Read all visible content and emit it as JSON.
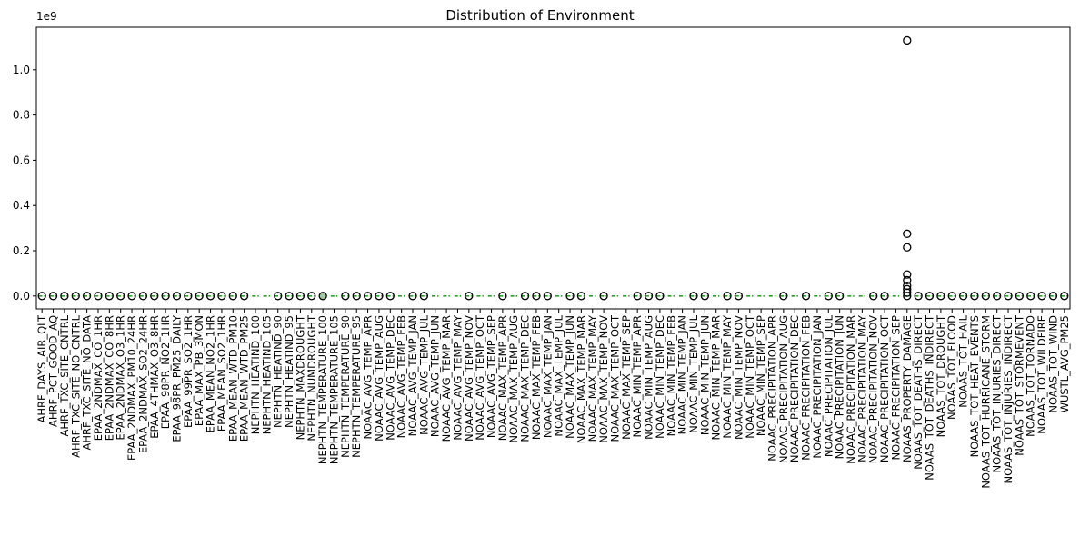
{
  "chart_data": {
    "type": "box",
    "title": "Distribution of Environment",
    "xlabel": "",
    "ylabel": "",
    "y_offset_label": "1e9",
    "ylim": [
      -0.057,
      1.188
    ],
    "yticks": [
      0.0,
      0.2,
      0.4,
      0.6,
      0.8,
      1.0
    ],
    "ytick_labels": [
      "0.0",
      "0.2",
      "0.4",
      "0.6",
      "0.8",
      "1.0"
    ],
    "grid": false,
    "legend": false,
    "colors": {
      "box_edge": "#1f77b4",
      "median": "#2ca02c",
      "flier_edge": "#000000",
      "flier_fill_light": "#9ecaa0"
    },
    "categories": [
      "AHRF_DAYS_AIR_QLT",
      "AHRF_PCT_GOOD_AQ",
      "AHRF_TXC_SITE_CNTRL",
      "AHRF_TXC_SITE_NO_CNTRL",
      "AHRF_TXC_SITE_NO_DATA",
      "EPAA_2NDMAX_CO_1HR",
      "EPAA_2NDMAX_CO_8HR",
      "EPAA_2NDMAX_O3_1HR",
      "EPAA_2NDMAX_PM10_24HR",
      "EPAA_2NDMAX_SO2_24HR",
      "EPAA_4THMAX_O3_8HR",
      "EPAA_98PR_NO2_1HR",
      "EPAA_98PR_PM25_DAILY",
      "EPAA_99PR_SO2_1HR",
      "EPAA_MAX_PB_3MON",
      "EPAA_MEAN_NO2_1HR",
      "EPAA_MEAN_SO2_1HR",
      "EPAA_MEAN_WTD_PM10",
      "EPAA_MEAN_WTD_PM25",
      "NEPHTN_HEATIND_100",
      "NEPHTN_HEATIND_105",
      "NEPHTN_HEATIND_90",
      "NEPHTN_HEATIND_95",
      "NEPHTN_MAXDROUGHT",
      "NEPHTN_NUMDROUGHT",
      "NEPHTN_TEMPERATURE_100",
      "NEPHTN_TEMPERATURE_105",
      "NEPHTN_TEMPERATURE_90",
      "NEPHTN_TEMPERATURE_95",
      "NOAAC_AVG_TEMP_APR",
      "NOAAC_AVG_TEMP_AUG",
      "NOAAC_AVG_TEMP_DEC",
      "NOAAC_AVG_TEMP_FEB",
      "NOAAC_AVG_TEMP_JAN",
      "NOAAC_AVG_TEMP_JUL",
      "NOAAC_AVG_TEMP_JUN",
      "NOAAC_AVG_TEMP_MAR",
      "NOAAC_AVG_TEMP_MAY",
      "NOAAC_AVG_TEMP_NOV",
      "NOAAC_AVG_TEMP_OCT",
      "NOAAC_AVG_TEMP_SEP",
      "NOAAC_MAX_TEMP_APR",
      "NOAAC_MAX_TEMP_AUG",
      "NOAAC_MAX_TEMP_DEC",
      "NOAAC_MAX_TEMP_FEB",
      "NOAAC_MAX_TEMP_JAN",
      "NOAAC_MAX_TEMP_JUL",
      "NOAAC_MAX_TEMP_JUN",
      "NOAAC_MAX_TEMP_MAR",
      "NOAAC_MAX_TEMP_MAY",
      "NOAAC_MAX_TEMP_NOV",
      "NOAAC_MAX_TEMP_OCT",
      "NOAAC_MAX_TEMP_SEP",
      "NOAAC_MIN_TEMP_APR",
      "NOAAC_MIN_TEMP_AUG",
      "NOAAC_MIN_TEMP_DEC",
      "NOAAC_MIN_TEMP_FEB",
      "NOAAC_MIN_TEMP_JAN",
      "NOAAC_MIN_TEMP_JUL",
      "NOAAC_MIN_TEMP_JUN",
      "NOAAC_MIN_TEMP_MAR",
      "NOAAC_MIN_TEMP_MAY",
      "NOAAC_MIN_TEMP_NOV",
      "NOAAC_MIN_TEMP_OCT",
      "NOAAC_MIN_TEMP_SEP",
      "NOAAC_PRECIPITATION_APR",
      "NOAAC_PRECIPITATION_AUG",
      "NOAAC_PRECIPITATION_DEC",
      "NOAAC_PRECIPITATION_FEB",
      "NOAAC_PRECIPITATION_JAN",
      "NOAAC_PRECIPITATION_JUL",
      "NOAAC_PRECIPITATION_JUN",
      "NOAAC_PRECIPITATION_MAR",
      "NOAAC_PRECIPITATION_MAY",
      "NOAAC_PRECIPITATION_NOV",
      "NOAAC_PRECIPITATION_OCT",
      "NOAAC_PRECIPITATION_SEP",
      "NOAAS_PROPERTY_DAMAGE",
      "NOAAS_TOT_DEATHS_DIRECT",
      "NOAAS_TOT_DEATHS_INDIRECT",
      "NOAAS_TOT_DROUGHT",
      "NOAAS_TOT_FLOOD",
      "NOAAS_TOT_HAIL",
      "NOAAS_TOT_HEAT_EVENTS",
      "NOAAS_TOT_HURRICANE_STORM",
      "NOAAS_TOT_INJURIES_DIRECT",
      "NOAAS_TOT_INJURIES_INDIRECT",
      "NOAAS_TOT_STORMEVENT",
      "NOAAS_TOT_TORNADO",
      "NOAAS_TOT_WILDFIRE",
      "NOAAS_TOT_WIND",
      "WUSTL_AVG_PM25"
    ],
    "flier_categories": [
      "AHRF_DAYS_AIR_QLT",
      "AHRF_PCT_GOOD_AQ",
      "AHRF_TXC_SITE_CNTRL",
      "AHRF_TXC_SITE_NO_CNTRL",
      "AHRF_TXC_SITE_NO_DATA",
      "EPAA_2NDMAX_CO_1HR",
      "EPAA_2NDMAX_CO_8HR",
      "EPAA_2NDMAX_O3_1HR",
      "EPAA_2NDMAX_PM10_24HR",
      "EPAA_2NDMAX_SO2_24HR",
      "EPAA_4THMAX_O3_8HR",
      "EPAA_98PR_NO2_1HR",
      "EPAA_98PR_PM25_DAILY",
      "EPAA_99PR_SO2_1HR",
      "EPAA_MAX_PB_3MON",
      "EPAA_MEAN_NO2_1HR",
      "EPAA_MEAN_SO2_1HR",
      "EPAA_MEAN_WTD_PM10",
      "EPAA_MEAN_WTD_PM25",
      "NEPHTN_HEATIND_90",
      "NEPHTN_HEATIND_95",
      "NEPHTN_MAXDROUGHT",
      "NEPHTN_NUMDROUGHT",
      "NEPHTN_TEMPERATURE_90",
      "NEPHTN_TEMPERATURE_95",
      "NOAAC_AVG_TEMP_APR",
      "NOAAC_AVG_TEMP_AUG",
      "NOAAC_AVG_TEMP_DEC",
      "NOAAC_AVG_TEMP_JAN",
      "NOAAC_AVG_TEMP_JUL",
      "NOAAC_AVG_TEMP_NOV",
      "NOAAC_MAX_TEMP_APR",
      "NOAAC_MAX_TEMP_DEC",
      "NOAAC_MAX_TEMP_FEB",
      "NOAAC_MAX_TEMP_JAN",
      "NOAAC_MAX_TEMP_JUN",
      "NOAAC_MAX_TEMP_MAR",
      "NOAAC_MAX_TEMP_NOV",
      "NOAAC_MIN_TEMP_APR",
      "NOAAC_MIN_TEMP_AUG",
      "NOAAC_MIN_TEMP_DEC",
      "NOAAC_MIN_TEMP_JUL",
      "NOAAC_MIN_TEMP_JUN",
      "NOAAC_MIN_TEMP_MAY",
      "NOAAC_MIN_TEMP_NOV",
      "NOAAC_PRECIPITATION_AUG",
      "NOAAC_PRECIPITATION_FEB",
      "NOAAC_PRECIPITATION_JUL",
      "NOAAC_PRECIPITATION_JUN",
      "NOAAC_PRECIPITATION_NOV",
      "NOAAC_PRECIPITATION_OCT",
      "NOAAS_PROPERTY_DAMAGE",
      "NOAAS_TOT_DEATHS_DIRECT",
      "NOAAS_TOT_DEATHS_INDIRECT",
      "NOAAS_TOT_DROUGHT",
      "NOAAS_TOT_FLOOD",
      "NOAAS_TOT_HAIL",
      "NOAAS_TOT_HEAT_EVENTS",
      "NOAAS_TOT_HURRICANE_STORM",
      "NOAAS_TOT_INJURIES_DIRECT",
      "NOAAS_TOT_INJURIES_INDIRECT",
      "NOAAS_TOT_STORMEVENT",
      "NOAAS_TOT_TORNADO",
      "NOAAS_TOT_WILDFIRE",
      "NOAAS_TOT_WIND",
      "WUSTL_AVG_PM25"
    ],
    "light_flier_categories": [
      "EPAA_MAX_PB_3MON",
      "EPAA_MEAN_NO2_1HR",
      "NEPHTN_TEMPERATURE_100",
      "NOAAC_AVG_TEMP_AUG",
      "NOAAC_AVG_TEMP_JUL",
      "NOAAC_MIN_TEMP_AUG"
    ],
    "big_outliers": [
      {
        "category": "NOAAS_PROPERTY_DAMAGE",
        "values": [
          1.13,
          0.275,
          0.215,
          0.095,
          0.07,
          0.045,
          0.03,
          0.015
        ]
      }
    ]
  }
}
